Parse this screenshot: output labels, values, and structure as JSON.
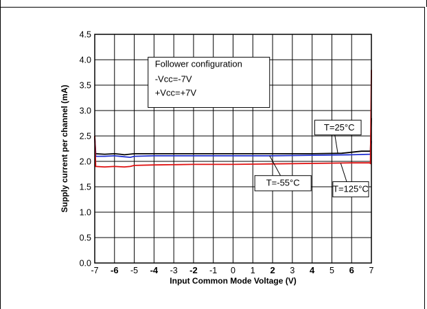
{
  "chart_data": {
    "type": "line",
    "title": "",
    "xlabel": "Input Common Mode Voltage (V)",
    "ylabel": "Supply current per channel (mA)",
    "xlim": [
      -7,
      7
    ],
    "ylim": [
      0.0,
      4.5
    ],
    "xticks": [
      -7,
      -6,
      -5,
      -4,
      -3,
      -2,
      -1,
      0,
      1,
      2,
      3,
      4,
      5,
      6,
      7
    ],
    "xtick_labels": [
      "-7",
      "-6",
      "-5",
      "-4",
      "-3",
      "-2",
      "-1",
      "0",
      "1",
      "2",
      "3",
      "4",
      "5",
      "6",
      "7"
    ],
    "yticks": [
      0.0,
      0.5,
      1.0,
      1.5,
      2.0,
      2.5,
      3.0,
      3.5,
      4.0,
      4.5
    ],
    "ytick_labels": [
      "0.0",
      "0.5",
      "1.0",
      "1.5",
      "2.0",
      "2.5",
      "3.0",
      "3.5",
      "4.0",
      "4.5"
    ],
    "grid": true,
    "series": [
      {
        "name": "T=25°C",
        "color": "#000000",
        "points": [
          [
            -7,
            2.5
          ],
          [
            -6.95,
            2.15
          ],
          [
            -6.5,
            2.14
          ],
          [
            -6,
            2.15
          ],
          [
            -5.7,
            2.14
          ],
          [
            -5.5,
            2.13
          ],
          [
            -5,
            2.15
          ],
          [
            -4,
            2.15
          ],
          [
            -2,
            2.15
          ],
          [
            0,
            2.15
          ],
          [
            2,
            2.15
          ],
          [
            4,
            2.15
          ],
          [
            5.5,
            2.16
          ],
          [
            6,
            2.18
          ],
          [
            6.5,
            2.2
          ],
          [
            6.95,
            2.2
          ],
          [
            7,
            2.85
          ]
        ]
      },
      {
        "name": "T=-55°C",
        "color": "#1f2fd0",
        "points": [
          [
            -7,
            2.45
          ],
          [
            -6.95,
            2.1
          ],
          [
            -6.5,
            2.1
          ],
          [
            -6,
            2.11
          ],
          [
            -5.5,
            2.09
          ],
          [
            -5.2,
            2.08
          ],
          [
            -5,
            2.1
          ],
          [
            -4,
            2.11
          ],
          [
            -2,
            2.11
          ],
          [
            0,
            2.11
          ],
          [
            2,
            2.11
          ],
          [
            4,
            2.12
          ],
          [
            6,
            2.13
          ],
          [
            6.95,
            2.14
          ],
          [
            7,
            2.4
          ]
        ]
      },
      {
        "name": "T=125°C",
        "color": "#e01010",
        "points": [
          [
            -7,
            2.5
          ],
          [
            -6.95,
            1.9
          ],
          [
            -6.5,
            1.89
          ],
          [
            -6,
            1.9
          ],
          [
            -5.5,
            1.89
          ],
          [
            -5.2,
            1.9
          ],
          [
            -5,
            1.92
          ],
          [
            -4,
            1.93
          ],
          [
            -2,
            1.94
          ],
          [
            0,
            1.94
          ],
          [
            2,
            1.95
          ],
          [
            4,
            1.96
          ],
          [
            6,
            1.97
          ],
          [
            6.9,
            1.97
          ],
          [
            6.95,
            1.96
          ],
          [
            7,
            3.8
          ]
        ]
      }
    ],
    "annotations": [
      {
        "label": "Follower configuration"
      },
      {
        "label": "-Vcc=-7V"
      },
      {
        "label": "+Vcc=+7V"
      },
      {
        "label": "T=25°C"
      },
      {
        "label": "T=-55°C"
      },
      {
        "label": "T=125°C"
      }
    ]
  }
}
